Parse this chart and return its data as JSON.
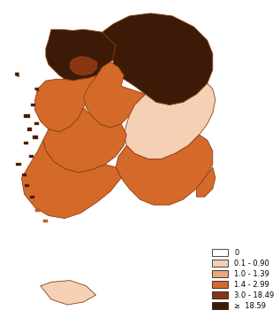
{
  "background_color": "#ffffff",
  "legend_labels": [
    "0",
    "0.1 - 0.90",
    "1.0 - 1.39",
    "1.4 - 2.99",
    "3.0 - 18.49",
    "≥  18.59"
  ],
  "legend_colors": [
    "#ffffff",
    "#f5d0b5",
    "#e8a878",
    "#d4692a",
    "#8b3510",
    "#3d1a08"
  ],
  "edge_color": "#8b4010",
  "figsize": [
    3.17,
    3.59
  ],
  "dpi": 100
}
